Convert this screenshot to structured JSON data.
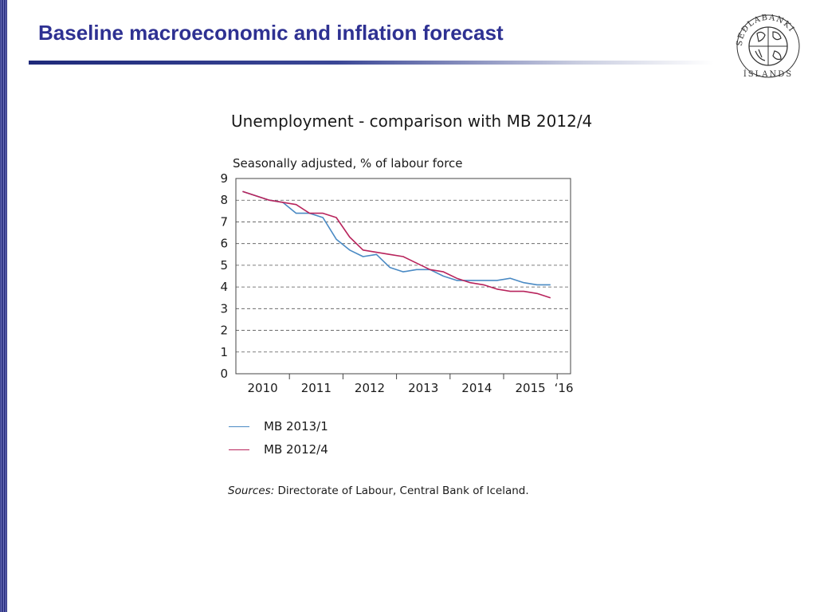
{
  "slide": {
    "title": "Baseline macroeconomic and inflation forecast",
    "logo_text": "SEÐLABANKI ÍSLANDS",
    "brand_color": "#2e3192"
  },
  "chart_data": {
    "type": "line",
    "title": "Unemployment - comparison with MB 2012/4",
    "subtitle": "Seasonally adjusted, % of labour force",
    "xlabel": "",
    "ylabel": "",
    "ylim": [
      0,
      9
    ],
    "y_ticks": [
      0,
      1,
      2,
      3,
      4,
      5,
      6,
      7,
      8,
      9
    ],
    "x_range": [
      2010.0,
      2016.25
    ],
    "x_tick_labels": [
      {
        "year": 2010,
        "label": "2010"
      },
      {
        "year": 2011,
        "label": "2011"
      },
      {
        "year": 2012,
        "label": "2012"
      },
      {
        "year": 2013,
        "label": "2013"
      },
      {
        "year": 2014,
        "label": "2014"
      },
      {
        "year": 2015,
        "label": "2015"
      },
      {
        "year": 2016,
        "label": "‘16"
      }
    ],
    "x_period": "quarterly",
    "grid": "horizontal dashed",
    "legend_position": "bottom-left",
    "series": [
      {
        "name": "MB 2013/1",
        "color": "#4a8ac4",
        "start": "2010Q1",
        "values": [
          8.4,
          8.2,
          8.0,
          7.9,
          7.4,
          7.4,
          7.2,
          6.2,
          5.7,
          5.4,
          5.5,
          4.9,
          4.7,
          4.8,
          4.8,
          4.5,
          4.3,
          4.3,
          4.3,
          4.3,
          4.4,
          4.2,
          4.1,
          4.1
        ]
      },
      {
        "name": "MB 2012/4",
        "color": "#b8245c",
        "start": "2010Q1",
        "values": [
          8.4,
          8.2,
          8.0,
          7.9,
          7.8,
          7.4,
          7.4,
          7.2,
          6.3,
          5.7,
          5.6,
          5.5,
          5.4,
          5.1,
          4.8,
          4.7,
          4.4,
          4.2,
          4.1,
          3.9,
          3.8,
          3.8,
          3.7,
          3.5
        ]
      }
    ]
  },
  "sources": {
    "label": "Sources:",
    "text": " Directorate of Labour, Central Bank of Iceland."
  }
}
